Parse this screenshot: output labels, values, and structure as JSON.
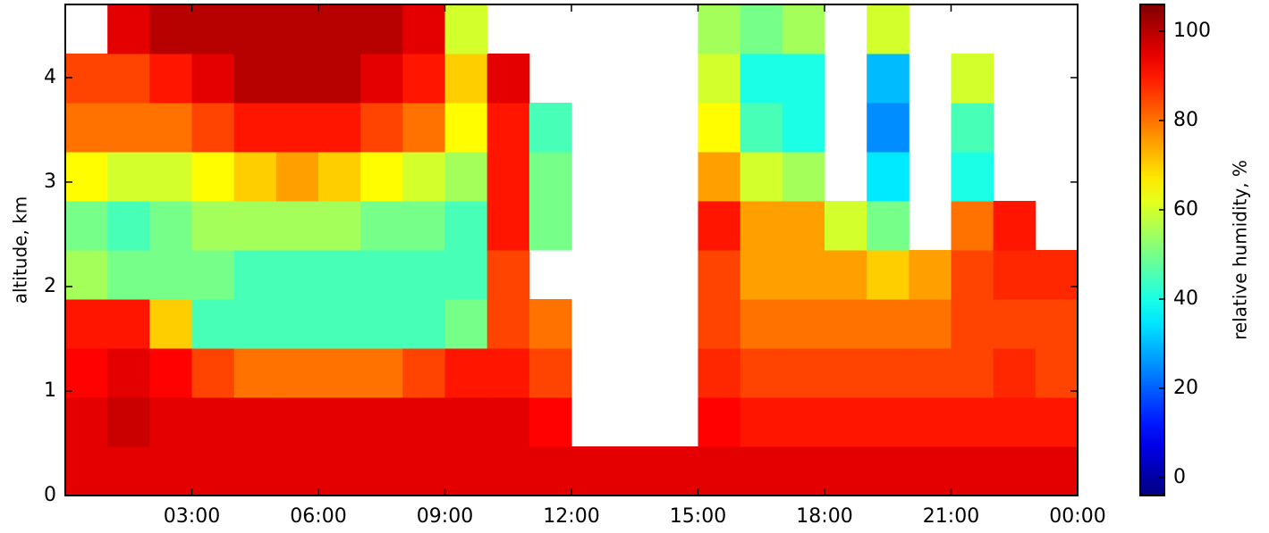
{
  "chart_data": {
    "type": "heatmap",
    "ylabel": "altitude, km",
    "colorbar_label": "relative humidity, %",
    "colormap": "jet",
    "xlim": [
      0,
      24
    ],
    "xticks": [
      {
        "value": 3,
        "label": "03:00"
      },
      {
        "value": 6,
        "label": "06:00"
      },
      {
        "value": 9,
        "label": "09:00"
      },
      {
        "value": 12,
        "label": "12:00"
      },
      {
        "value": 15,
        "label": "15:00"
      },
      {
        "value": 18,
        "label": "18:00"
      },
      {
        "value": 21,
        "label": "21:00"
      },
      {
        "value": 24,
        "label": "00:00"
      }
    ],
    "ylim": [
      0,
      4.7
    ],
    "yticks": [
      0,
      1,
      2,
      3,
      4
    ],
    "zlim": [
      -4,
      106
    ],
    "zticks": [
      0,
      20,
      40,
      60,
      80,
      100
    ],
    "xbins": [
      0,
      1,
      2,
      3,
      4,
      5,
      6,
      7,
      8,
      9,
      10,
      11,
      12,
      13,
      14,
      15,
      16,
      17,
      18,
      19,
      20,
      21,
      22,
      23,
      24
    ],
    "ybins": [
      0,
      0.47,
      0.94,
      1.41,
      1.88,
      2.35,
      2.82,
      3.29,
      3.76,
      4.23,
      4.7
    ],
    "z": [
      [
        95,
        95,
        95,
        95,
        95,
        95,
        95,
        95,
        95,
        95,
        95,
        95,
        95,
        95,
        95,
        95,
        95,
        95,
        95,
        95,
        95,
        95,
        95,
        95
      ],
      [
        95,
        98,
        95,
        95,
        95,
        95,
        95,
        95,
        95,
        95,
        95,
        92,
        null,
        null,
        null,
        92,
        90,
        90,
        90,
        90,
        90,
        90,
        90,
        90
      ],
      [
        92,
        95,
        92,
        85,
        80,
        80,
        80,
        80,
        85,
        90,
        90,
        85,
        null,
        null,
        null,
        88,
        85,
        85,
        85,
        85,
        85,
        85,
        88,
        85
      ],
      [
        90,
        90,
        70,
        45,
        45,
        45,
        45,
        45,
        45,
        50,
        85,
        80,
        null,
        null,
        null,
        85,
        80,
        80,
        80,
        80,
        80,
        85,
        85,
        85
      ],
      [
        55,
        50,
        50,
        50,
        45,
        45,
        45,
        45,
        45,
        45,
        85,
        null,
        null,
        null,
        null,
        85,
        75,
        75,
        75,
        70,
        75,
        85,
        88,
        88
      ],
      [
        50,
        45,
        50,
        55,
        55,
        55,
        55,
        50,
        50,
        45,
        90,
        50,
        null,
        null,
        null,
        90,
        75,
        75,
        60,
        50,
        null,
        80,
        90,
        null
      ],
      [
        65,
        60,
        60,
        65,
        70,
        75,
        70,
        65,
        60,
        55,
        90,
        50,
        null,
        null,
        null,
        75,
        60,
        55,
        null,
        35,
        null,
        40,
        null,
        null
      ],
      [
        80,
        80,
        80,
        85,
        90,
        90,
        90,
        85,
        80,
        65,
        90,
        45,
        null,
        null,
        null,
        65,
        45,
        40,
        null,
        25,
        null,
        45,
        null,
        null
      ],
      [
        85,
        85,
        90,
        95,
        100,
        100,
        100,
        95,
        90,
        70,
        95,
        null,
        null,
        null,
        null,
        60,
        40,
        40,
        null,
        30,
        null,
        60,
        null,
        null
      ],
      [
        null,
        95,
        100,
        100,
        100,
        100,
        100,
        100,
        95,
        60,
        null,
        null,
        null,
        null,
        null,
        55,
        50,
        55,
        null,
        60,
        null,
        null,
        null,
        null
      ]
    ]
  }
}
